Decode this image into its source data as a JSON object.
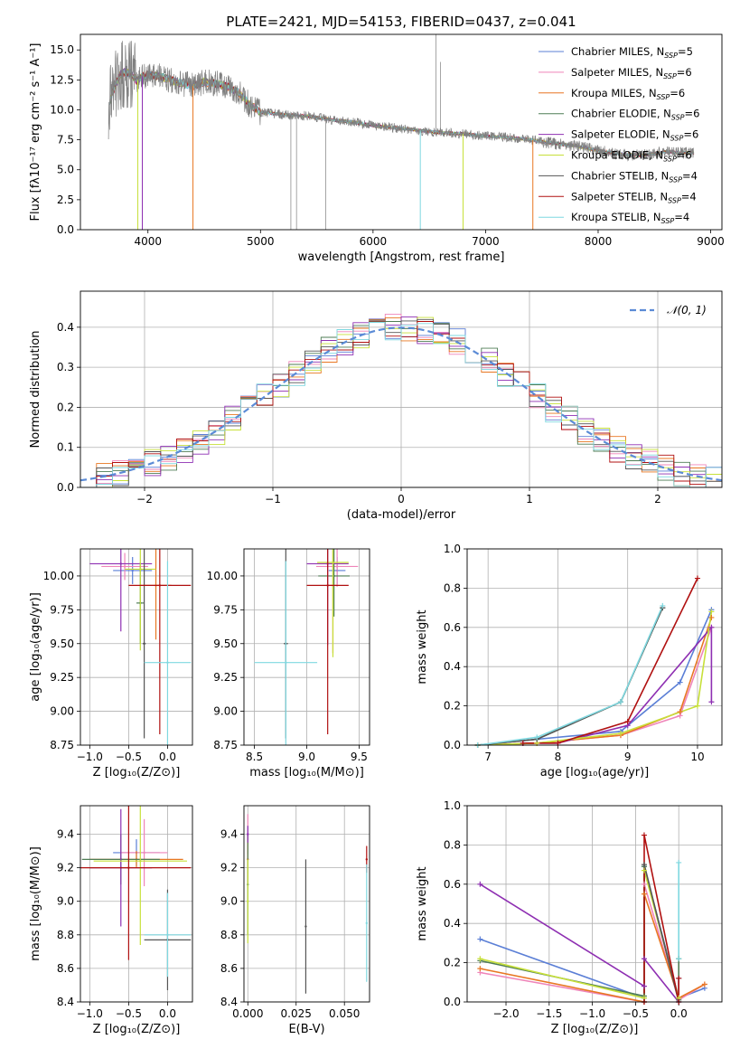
{
  "figure": {
    "title": "PLATE=2421, MJD=54153, FIBERID=0437, z=0.041",
    "models": [
      {
        "label": "Chabrier MILES, N",
        "sub": "SSP",
        "suffix": "=5",
        "color": "#5b7fd6"
      },
      {
        "label": "Salpeter MILES, N",
        "sub": "SSP",
        "suffix": "=6",
        "color": "#ef85b9"
      },
      {
        "label": "Kroupa MILES, N",
        "sub": "SSP",
        "suffix": "=6",
        "color": "#e87722"
      },
      {
        "label": "Chabrier ELODIE, N",
        "sub": "SSP",
        "suffix": "=6",
        "color": "#4f7d55"
      },
      {
        "label": "Salpeter ELODIE, N",
        "sub": "SSP",
        "suffix": "=6",
        "color": "#8e2fb2"
      },
      {
        "label": "Kroupa ELODIE, N",
        "sub": "SSP",
        "suffix": "=6",
        "color": "#c7e03a"
      },
      {
        "label": "Chabrier STELIB, N",
        "sub": "SSP",
        "suffix": "=4",
        "color": "#555555"
      },
      {
        "label": "Salpeter STELIB, N",
        "sub": "SSP",
        "suffix": "=4",
        "color": "#b01010"
      },
      {
        "label": "Kroupa STELIB, N",
        "sub": "SSP",
        "suffix": "=4",
        "color": "#7fd8e0"
      }
    ]
  },
  "chart_data": [
    {
      "id": "spectrum",
      "type": "line",
      "xlabel": "wavelength [Angstrom, rest frame]",
      "ylabel": "Flux [fλ10⁻¹⁷ erg cm⁻² s⁻¹ A⁻¹]",
      "xlim": [
        3400,
        9100
      ],
      "ylim": [
        0,
        16.3
      ],
      "xticks": [
        4000,
        5000,
        6000,
        7000,
        8000,
        9000
      ],
      "yticks": [
        0.0,
        2.5,
        5.0,
        7.5,
        10.0,
        12.5,
        15.0
      ],
      "ytick_labels": [
        "0.0",
        "2.5",
        "5.0",
        "7.5",
        "10.0",
        "12.5",
        "15.0"
      ],
      "series": [
        {
          "x": [
            3650,
            3700,
            3750,
            3800,
            3850,
            3900,
            3950,
            4000,
            4100,
            4200,
            4300,
            4400,
            4500,
            4600,
            4700,
            4800,
            4900,
            5000,
            5200,
            5400,
            5600,
            5800,
            6000,
            6200,
            6400,
            6600,
            6800,
            7000,
            7200,
            7400,
            7600,
            7800,
            8000,
            8200,
            8400,
            8600,
            8800
          ],
          "y": [
            10.5,
            11.8,
            12.9,
            13.2,
            13.0,
            12.4,
            12.8,
            12.9,
            12.8,
            12.5,
            12.2,
            12.0,
            12.3,
            12.2,
            12.0,
            11.5,
            10.5,
            9.8,
            9.6,
            9.5,
            9.2,
            9.0,
            8.7,
            8.5,
            8.3,
            8.1,
            8.0,
            7.8,
            7.7,
            7.5,
            7.2,
            7.0,
            6.6,
            6.3,
            6.2,
            6.5,
            6.4
          ]
        }
      ]
    },
    {
      "id": "residuals",
      "type": "histogram",
      "xlabel": "(data-model)/error",
      "ylabel": "Normed distribution",
      "xlim": [
        -2.5,
        2.5
      ],
      "ylim": [
        0,
        0.49
      ],
      "xticks": [
        -2,
        -1,
        0,
        1,
        2
      ],
      "xtick_labels": [
        "−2",
        "−1",
        "0",
        "1",
        "2"
      ],
      "yticks": [
        0.0,
        0.1,
        0.2,
        0.3,
        0.4
      ],
      "ytick_labels": [
        "0.0",
        "0.1",
        "0.2",
        "0.3",
        "0.4"
      ],
      "legend": "𝒩(0, 1)",
      "bins": 40
    },
    {
      "id": "age_vs_Z",
      "type": "errorbar",
      "xlabel": "Z [log₁₀(Z/Z⊙)]",
      "ylabel": "age  [log₁₀(age/yr)]",
      "xlim": [
        -1.12,
        0.32
      ],
      "ylim": [
        8.75,
        10.2
      ],
      "xticks": [
        -1.0,
        -0.5,
        0.0
      ],
      "xtick_labels": [
        "−1.0",
        "−0.5",
        "0.0"
      ],
      "yticks": [
        8.75,
        9.0,
        9.25,
        9.5,
        9.75,
        10.0
      ],
      "ytick_labels": [
        "8.75",
        "9.00",
        "9.25",
        "9.50",
        "9.75",
        "10.00"
      ],
      "points": [
        {
          "m": 0,
          "x": -0.45,
          "xe": 0.25,
          "y": 10.04,
          "ye": 0.1
        },
        {
          "m": 1,
          "x": -0.55,
          "xe": 0.3,
          "y": 10.07,
          "ye": 0.1
        },
        {
          "m": 2,
          "x": -0.15,
          "xe": 0.2,
          "y": 9.93,
          "ye": 0.4
        },
        {
          "m": 3,
          "x": -0.35,
          "xe": 0.05,
          "y": 9.8,
          "ye": 0.3
        },
        {
          "m": 4,
          "x": -0.6,
          "xe": 0.4,
          "y": 10.09,
          "ye": 0.5
        },
        {
          "m": 5,
          "x": -0.35,
          "xe": 0.2,
          "y": 10.05,
          "ye": 0.6
        },
        {
          "m": 6,
          "x": -0.3,
          "xe": 0.02,
          "y": 9.5,
          "ye": 0.7
        },
        {
          "m": 7,
          "x": -0.1,
          "xe": 0.4,
          "y": 9.93,
          "ye": 1.1
        },
        {
          "m": 8,
          "x": 0.0,
          "xe": 0.3,
          "y": 9.36,
          "ye": 0.75
        }
      ]
    },
    {
      "id": "age_vs_mass",
      "type": "errorbar",
      "xlabel": "mass [log₁₀(M/M⊙)]",
      "ylabel": "",
      "xlim": [
        8.4,
        9.6
      ],
      "ylim": [
        8.75,
        10.2
      ],
      "xticks": [
        8.5,
        9.0,
        9.5
      ],
      "xtick_labels": [
        "8.5",
        "9.0",
        "9.5"
      ],
      "yticks": [
        8.75,
        9.0,
        9.25,
        9.5,
        9.75,
        10.0
      ],
      "ytick_labels": [
        "8.75",
        "9.00",
        "9.25",
        "9.50",
        "9.75",
        "10.00"
      ],
      "points": [
        {
          "m": 0,
          "x": 9.29,
          "xe": 0.08,
          "y": 10.04,
          "ye": 0.1
        },
        {
          "m": 1,
          "x": 9.29,
          "xe": 0.2,
          "y": 10.07,
          "ye": 0.15
        },
        {
          "m": 2,
          "x": 9.25,
          "xe": 0.05,
          "y": 9.93,
          "ye": 0.5
        },
        {
          "m": 3,
          "x": 9.26,
          "xe": 0.15,
          "y": 10.0,
          "ye": 0.3
        },
        {
          "m": 4,
          "x": 9.2,
          "xe": 0.2,
          "y": 10.09,
          "ye": 0.6
        },
        {
          "m": 5,
          "x": 9.25,
          "xe": 0.15,
          "y": 10.1,
          "ye": 0.7
        },
        {
          "m": 6,
          "x": 8.8,
          "xe": 0.02,
          "y": 9.5,
          "ye": 0.7
        },
        {
          "m": 7,
          "x": 9.2,
          "xe": 0.2,
          "y": 9.93,
          "ye": 1.1
        },
        {
          "m": 8,
          "x": 8.8,
          "xe": 0.3,
          "y": 9.36,
          "ye": 0.75
        }
      ]
    },
    {
      "id": "weight_vs_age",
      "type": "line",
      "xlabel": "age  [log₁₀(age/yr)]",
      "ylabel": "mass weight",
      "xlim": [
        6.7,
        10.35
      ],
      "ylim": [
        0,
        1
      ],
      "xticks": [
        7,
        8,
        9,
        10
      ],
      "xtick_labels": [
        "7",
        "8",
        "9",
        "10"
      ],
      "yticks": [
        0.0,
        0.2,
        0.4,
        0.6,
        0.8,
        1.0
      ],
      "ytick_labels": [
        "0.0",
        "0.2",
        "0.4",
        "0.6",
        "0.8",
        "1.0"
      ],
      "series": [
        {
          "m": 0,
          "x": [
            6.85,
            7.7,
            8.9,
            9.75,
            10.2
          ],
          "y": [
            0.0,
            0.03,
            0.07,
            0.32,
            0.69
          ]
        },
        {
          "m": 1,
          "x": [
            6.85,
            7.7,
            8.9,
            9.75,
            10.2
          ],
          "y": [
            0.0,
            0.01,
            0.05,
            0.15,
            0.6
          ]
        },
        {
          "m": 2,
          "x": [
            6.85,
            7.7,
            8.9,
            9.75,
            10.2
          ],
          "y": [
            0.0,
            0.01,
            0.05,
            0.17,
            0.65
          ]
        },
        {
          "m": 3,
          "x": [
            6.85,
            7.7,
            8.9,
            9.5
          ],
          "y": [
            0.0,
            0.03,
            0.22,
            0.7
          ]
        },
        {
          "m": 4,
          "x": [
            7.5,
            8.0,
            9.0,
            10.2,
            10.2
          ],
          "y": [
            0.01,
            0.01,
            0.1,
            0.6,
            0.22
          ]
        },
        {
          "m": 5,
          "x": [
            6.85,
            7.7,
            8.9,
            10.0,
            10.2
          ],
          "y": [
            0.0,
            0.01,
            0.06,
            0.2,
            0.68
          ]
        },
        {
          "m": 6,
          "x": [
            6.85,
            7.7,
            8.9,
            9.5
          ],
          "y": [
            0.0,
            0.03,
            0.22,
            0.7
          ]
        },
        {
          "m": 7,
          "x": [
            7.5,
            8.0,
            9.0,
            10.0
          ],
          "y": [
            0.01,
            0.01,
            0.12,
            0.85
          ]
        },
        {
          "m": 8,
          "x": [
            6.85,
            7.7,
            8.9,
            9.5
          ],
          "y": [
            0.0,
            0.04,
            0.22,
            0.71
          ]
        }
      ]
    },
    {
      "id": "mass_vs_Z",
      "type": "errorbar",
      "xlabel": "Z [log₁₀(Z/Z⊙)]",
      "ylabel": "mass [log₁₀(M/M⊙)]",
      "xlim": [
        -1.12,
        0.32
      ],
      "ylim": [
        8.4,
        9.57
      ],
      "xticks": [
        -1.0,
        -0.5,
        0.0
      ],
      "xtick_labels": [
        "−1.0",
        "−0.5",
        "0.0"
      ],
      "yticks": [
        8.4,
        8.6,
        8.8,
        9.0,
        9.2,
        9.4
      ],
      "ytick_labels": [
        "8.4",
        "8.6",
        "8.8",
        "9.0",
        "9.2",
        "9.4"
      ],
      "points": [
        {
          "m": 0,
          "x": -0.4,
          "xe": 0.3,
          "y": 9.29,
          "ye": 0.08
        },
        {
          "m": 1,
          "x": -0.3,
          "xe": 0.3,
          "y": 9.29,
          "ye": 0.2
        },
        {
          "m": 2,
          "x": -0.4,
          "xe": 0.6,
          "y": 9.25,
          "ye": 0.05
        },
        {
          "m": 3,
          "x": -0.6,
          "xe": 0.5,
          "y": 9.25,
          "ye": 0.15
        },
        {
          "m": 4,
          "x": -0.6,
          "xe": 0.4,
          "y": 9.2,
          "ye": 0.35
        },
        {
          "m": 5,
          "x": -0.35,
          "xe": 0.6,
          "y": 9.24,
          "ye": 0.5
        },
        {
          "m": 6,
          "x": 0.0,
          "xe": 0.3,
          "y": 8.77,
          "ye": 0.3
        },
        {
          "m": 7,
          "x": -0.5,
          "xe": 0.8,
          "y": 9.2,
          "ye": 0.55
        },
        {
          "m": 8,
          "x": 0.0,
          "xe": 0.3,
          "y": 8.8,
          "ye": 0.25
        }
      ]
    },
    {
      "id": "mass_vs_ebv",
      "type": "errorbar",
      "xlabel": "E(B-V)",
      "ylabel": "",
      "xlim": [
        -0.002,
        0.063
      ],
      "ylim": [
        8.4,
        9.57
      ],
      "xticks": [
        0.0,
        0.025,
        0.05
      ],
      "xtick_labels": [
        "0.000",
        "0.025",
        "0.050"
      ],
      "yticks": [
        8.4,
        8.6,
        8.8,
        9.0,
        9.2,
        9.4
      ],
      "ytick_labels": [
        "8.4",
        "8.6",
        "8.8",
        "9.0",
        "9.2",
        "9.4"
      ],
      "points": [
        {
          "m": 0,
          "x": 0.0,
          "xe": 0,
          "y": 9.4,
          "ye": 0.05
        },
        {
          "m": 1,
          "x": 0.0,
          "xe": 0,
          "y": 9.4,
          "ye": 0.12
        },
        {
          "m": 2,
          "x": 0.0,
          "xe": 0,
          "y": 9.25,
          "ye": 0.15
        },
        {
          "m": 3,
          "x": 0.0,
          "xe": 0,
          "y": 9.1,
          "ye": 0.3
        },
        {
          "m": 4,
          "x": 0.0,
          "xe": 0,
          "y": 9.4,
          "ye": 0.05
        },
        {
          "m": 5,
          "x": 0.0,
          "xe": 0,
          "y": 9.0,
          "ye": 0.25
        },
        {
          "m": 6,
          "x": 0.03,
          "xe": 0,
          "y": 8.85,
          "ye": 0.4
        },
        {
          "m": 7,
          "x": 0.0615,
          "xe": 0,
          "y": 9.25,
          "ye": 0.08
        },
        {
          "m": 8,
          "x": 0.0615,
          "xe": 0,
          "y": 8.87,
          "ye": 0.35
        }
      ]
    },
    {
      "id": "weight_vs_Z",
      "type": "line",
      "xlabel": "Z [log₁₀(Z/Z⊙)]",
      "ylabel": "mass weight",
      "xlim": [
        -2.45,
        0.5
      ],
      "ylim": [
        0,
        1
      ],
      "xticks": [
        -2.0,
        -1.5,
        -1.0,
        -0.5,
        0.0
      ],
      "xtick_labels": [
        "−2.0",
        "−1.5",
        "−1.0",
        "−0.5",
        "0.0"
      ],
      "yticks": [
        0.0,
        0.2,
        0.4,
        0.6,
        0.8,
        1.0
      ],
      "ytick_labels": [
        "0.0",
        "0.2",
        "0.4",
        "0.6",
        "0.8",
        "1.0"
      ],
      "series": [
        {
          "m": 0,
          "x": [
            -2.3,
            -0.4,
            -0.4,
            0.0,
            0.3
          ],
          "y": [
            0.32,
            0.02,
            0.69,
            0.02,
            0.07
          ]
        },
        {
          "m": 1,
          "x": [
            -2.3,
            -0.4,
            -0.4,
            0.0,
            0.3
          ],
          "y": [
            0.15,
            0.0,
            0.6,
            0.01,
            0.09
          ]
        },
        {
          "m": 2,
          "x": [
            -2.3,
            -0.4,
            -0.4,
            0.0,
            0.3
          ],
          "y": [
            0.17,
            0.0,
            0.55,
            0.02,
            0.09
          ]
        },
        {
          "m": 3,
          "x": [
            -2.3,
            -0.4,
            -0.4,
            0.0,
            0.0
          ],
          "y": [
            0.21,
            0.03,
            0.69,
            0.01,
            0.22
          ]
        },
        {
          "m": 4,
          "x": [
            -2.3,
            -0.4,
            -0.4,
            0.0,
            0.0
          ],
          "y": [
            0.6,
            0.08,
            0.22,
            0.0,
            0.12
          ]
        },
        {
          "m": 5,
          "x": [
            -2.3,
            -0.4,
            -0.4,
            0.0
          ],
          "y": [
            0.22,
            0.02,
            0.67,
            0.02
          ]
        },
        {
          "m": 6,
          "x": [
            -0.4,
            -0.4,
            0.0,
            0.0
          ],
          "y": [
            0.0,
            0.7,
            0.0,
            0.12
          ]
        },
        {
          "m": 7,
          "x": [
            -0.4,
            -0.4,
            0.0,
            0.0
          ],
          "y": [
            0.0,
            0.85,
            0.0,
            0.12
          ]
        },
        {
          "m": 8,
          "x": [
            0.0,
            0.0
          ],
          "y": [
            0.22,
            0.71
          ]
        }
      ]
    }
  ]
}
